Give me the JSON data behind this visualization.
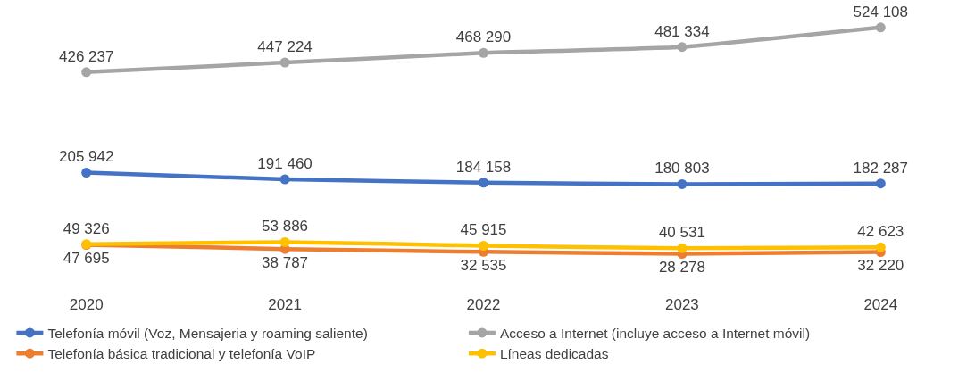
{
  "chart_data": {
    "type": "line",
    "categories": [
      "2020",
      "2021",
      "2022",
      "2023",
      "2024"
    ],
    "series": [
      {
        "name": "Telefonía móvil (Voz, Mensajeria y roaming saliente)",
        "color": "#4472c4",
        "values": [
          205942,
          191460,
          184158,
          180803,
          182287
        ],
        "value_labels": [
          "205 942",
          "191 460",
          "184 158",
          "180 803",
          "182 287"
        ]
      },
      {
        "name": "Acceso a Internet (incluye acceso a Internet móvil)",
        "color": "#a5a5a5",
        "values": [
          426237,
          447224,
          468290,
          481334,
          524108
        ],
        "value_labels": [
          "426 237",
          "447 224",
          "468 290",
          "481 334",
          "524 108"
        ]
      },
      {
        "name": "Telefonía básica tradicional y telefonía VoIP",
        "color": "#ed7d31",
        "values": [
          47695,
          38787,
          32535,
          28278,
          32220
        ],
        "value_labels": [
          "47 695",
          "38 787",
          "32 535",
          "28 278",
          "32 220"
        ]
      },
      {
        "name": "Líneas dedicadas",
        "color": "#ffc000",
        "values": [
          49326,
          53886,
          45915,
          40531,
          42623
        ],
        "value_labels": [
          "49 326",
          "53 886",
          "45 915",
          "40 531",
          "42 623"
        ]
      }
    ],
    "marker": "circle",
    "line_style": "solid",
    "legend": "bottom"
  }
}
